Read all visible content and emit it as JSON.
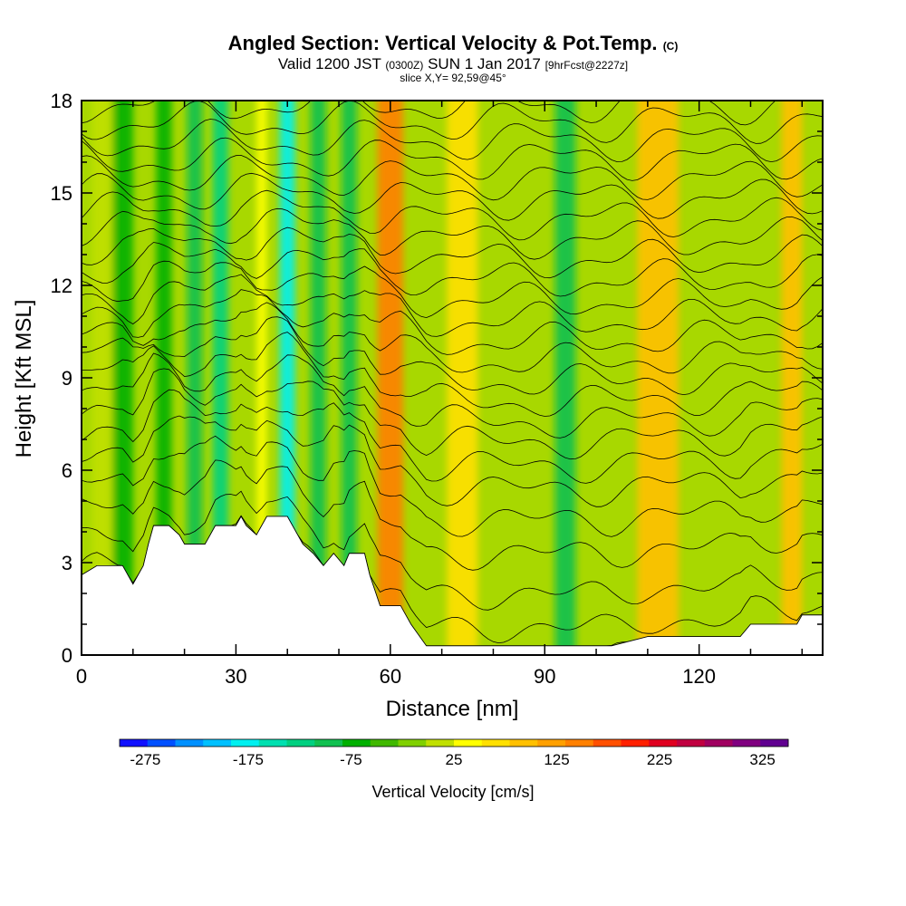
{
  "header": {
    "title_main": "Angled Section: Vertical Velocity & Pot.Temp.",
    "title_suffix": "(C)",
    "valid_a": "Valid 1200 JST",
    "valid_b": "(0300Z)",
    "valid_c": "SUN 1 Jan 2017",
    "valid_d": "[9hrFcst@2227z]",
    "slice": "slice X,Y= 92,59@45°"
  },
  "chart_data": {
    "type": "heatmap",
    "xlabel": "Distance [nm]",
    "ylabel": "Height [Kft MSL]",
    "xlim": [
      0,
      144
    ],
    "ylim": [
      0,
      18
    ],
    "x_ticks": [
      0,
      30,
      60,
      90,
      120
    ],
    "y_ticks": [
      0,
      3,
      6,
      9,
      12,
      15,
      18
    ],
    "colorbar": {
      "label": "Vertical Velocity [cm/s]",
      "tick_labels": [
        "-275",
        "-175",
        "-75",
        "25",
        "125",
        "225",
        "325"
      ],
      "colors": [
        "#1010ff",
        "#0050ff",
        "#0090ff",
        "#00c0ff",
        "#00f0f0",
        "#00e0b0",
        "#00d080",
        "#10c050",
        "#00b000",
        "#40b800",
        "#80d000",
        "#c0e000",
        "#ffff00",
        "#ffe000",
        "#ffc000",
        "#ffa000",
        "#ff8000",
        "#ff5000",
        "#ff2000",
        "#e00020",
        "#c00040",
        "#a00060",
        "#800080",
        "#600090"
      ]
    },
    "terrain_height_kft": [
      [
        0,
        2.6
      ],
      [
        3,
        2.9
      ],
      [
        8,
        2.9
      ],
      [
        10,
        2.3
      ],
      [
        12,
        2.9
      ],
      [
        13,
        3.6
      ],
      [
        14,
        4.2
      ],
      [
        17,
        4.2
      ],
      [
        19,
        3.9
      ],
      [
        20,
        3.6
      ],
      [
        24,
        3.6
      ],
      [
        25,
        3.9
      ],
      [
        26,
        4.2
      ],
      [
        30,
        4.2
      ],
      [
        31,
        4.5
      ],
      [
        32,
        4.2
      ],
      [
        34,
        3.9
      ],
      [
        36,
        4.5
      ],
      [
        40,
        4.5
      ],
      [
        42,
        3.9
      ],
      [
        43,
        3.6
      ],
      [
        45,
        3.3
      ],
      [
        47,
        2.9
      ],
      [
        49,
        3.3
      ],
      [
        51,
        2.9
      ],
      [
        52,
        3.3
      ],
      [
        55,
        3.3
      ],
      [
        56,
        2.6
      ],
      [
        58,
        1.6
      ],
      [
        62,
        1.6
      ],
      [
        64,
        1.0
      ],
      [
        67,
        0.3
      ],
      [
        103,
        0.3
      ],
      [
        110,
        0.6
      ],
      [
        128,
        0.6
      ],
      [
        130,
        1.0
      ],
      [
        139,
        1.0
      ],
      [
        140,
        1.3
      ],
      [
        144,
        1.3
      ]
    ],
    "vertical_velocity_bands_cm_s": [
      {
        "x": 4,
        "w": 4,
        "value": 0
      },
      {
        "x": 8,
        "w": 4,
        "value": -60
      },
      {
        "x": 16,
        "w": 3,
        "value": -80
      },
      {
        "x": 22,
        "w": 3,
        "value": -90
      },
      {
        "x": 27,
        "w": 3,
        "value": -130
      },
      {
        "x": 35,
        "w": 2,
        "value": 40
      },
      {
        "x": 40,
        "w": 3,
        "value": -180
      },
      {
        "x": 46,
        "w": 3,
        "value": -90
      },
      {
        "x": 52,
        "w": 3,
        "value": -100
      },
      {
        "x": 60,
        "w": 5,
        "value": 160
      },
      {
        "x": 74,
        "w": 6,
        "value": 60
      },
      {
        "x": 94,
        "w": 4,
        "value": -90
      },
      {
        "x": 112,
        "w": 8,
        "value": 90
      },
      {
        "x": 138,
        "w": 4,
        "value": 100
      }
    ],
    "theta_contour_heights_kft": [
      1.3,
      2.2,
      3.2,
      4.4,
      5.4,
      6.3,
      7.0,
      7.7,
      8.3,
      8.9,
      9.5,
      10.1,
      10.7,
      11.3,
      11.9,
      12.5,
      13.1,
      13.7,
      14.3,
      14.9,
      15.5,
      16.1,
      16.7,
      17.3,
      17.9
    ]
  }
}
